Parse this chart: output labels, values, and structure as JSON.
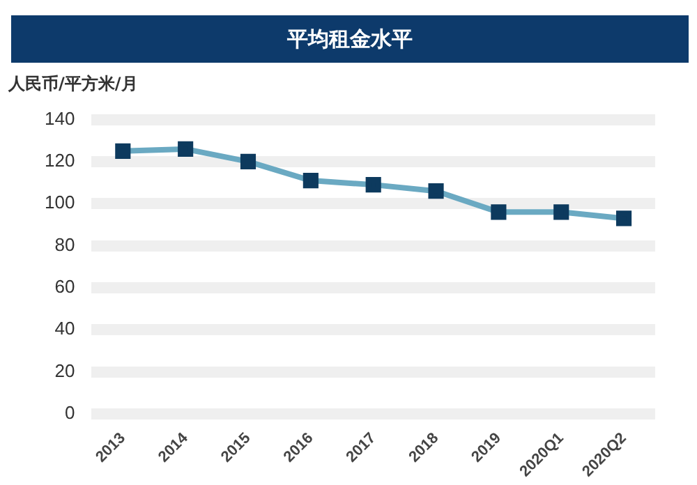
{
  "chart_data": {
    "type": "line",
    "title": "平均租金水平",
    "ylabel": "人民币/平方米/月",
    "categories": [
      "2013",
      "2014",
      "2015",
      "2016",
      "2017",
      "2018",
      "2019",
      "2020Q1",
      "2020Q2"
    ],
    "series": [
      {
        "color": "#6aa9c2",
        "values": [
          125,
          126,
          120,
          111,
          109,
          106,
          96,
          96,
          93
        ]
      }
    ],
    "ylim": [
      0,
      140
    ],
    "yticks": [
      0,
      20,
      40,
      60,
      80,
      100,
      120,
      140
    ],
    "grid": "y",
    "legend": false,
    "marker": "square",
    "line_style": "solid"
  }
}
